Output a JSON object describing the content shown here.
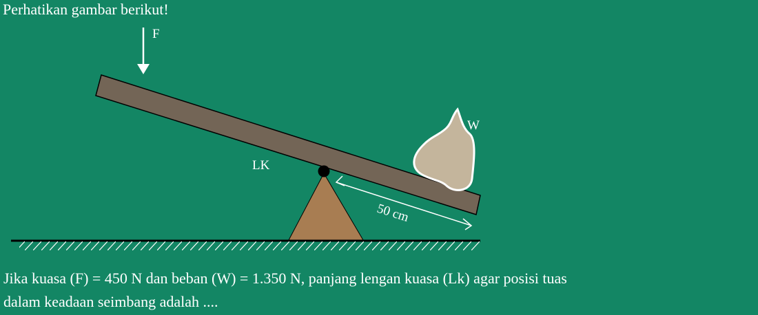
{
  "intro_text": "Perhatikan gambar berikut!",
  "diagram": {
    "force_label": "F",
    "load_label": "W",
    "effort_arm_label": "LK",
    "load_arm_length": "50 cm"
  },
  "question": {
    "line1": "Jika kuasa (F) = 450 N dan beban (W) = 1.350 N, panjang lengan kuasa (Lk) agar posisi tuas",
    "line2": "dalam keadaan seimbang adalah ...."
  },
  "colors": {
    "background": "#138664",
    "lever": "#736556",
    "fulcrum": "#a87d52",
    "rock": "#c4b59c",
    "pivot": "#000000",
    "text": "#ffffff"
  }
}
